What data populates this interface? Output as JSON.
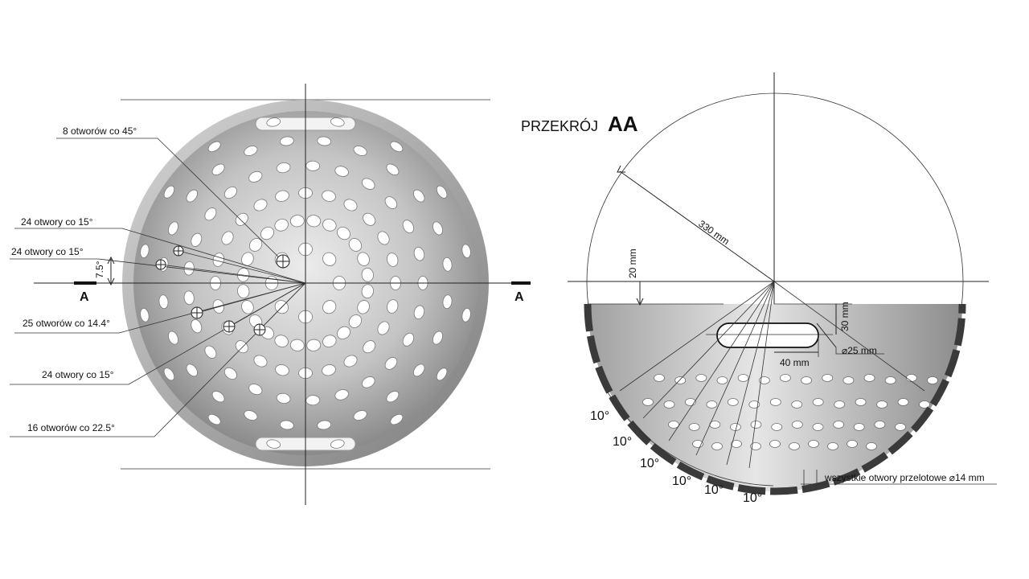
{
  "left_view": {
    "section_marks": [
      "A",
      "A"
    ],
    "hole_callouts": [
      "8 otworów co 45°",
      "24 otwory co 15°",
      "24 otwory co 15°",
      "25 otworów co 14.4°",
      "24 otwory co 15°",
      "16 otworów co 22.5°"
    ],
    "angle_offset": "7.5°"
  },
  "right_view": {
    "title_prefix": "PRZEKRÓJ",
    "title_suffix": "AA",
    "radius_label": "330 mm",
    "depth_label": "20 mm",
    "slot_height": "30 mm",
    "slot_length": "40 mm",
    "slot_diameter": "⌀25 mm",
    "angle_labels": [
      "10°",
      "10°",
      "10°",
      "10°",
      "10°",
      "10°"
    ],
    "holes_note": "wszystkie otwory przelotowe ⌀14 mm"
  },
  "colors": {
    "line": "#222222",
    "bowl_light": "#d9d9d9",
    "bowl_mid": "#a6a6a6",
    "bowl_dark": "#6e6e6e",
    "hole": "#ffffff",
    "wall_dark": "#3a3a3a"
  }
}
